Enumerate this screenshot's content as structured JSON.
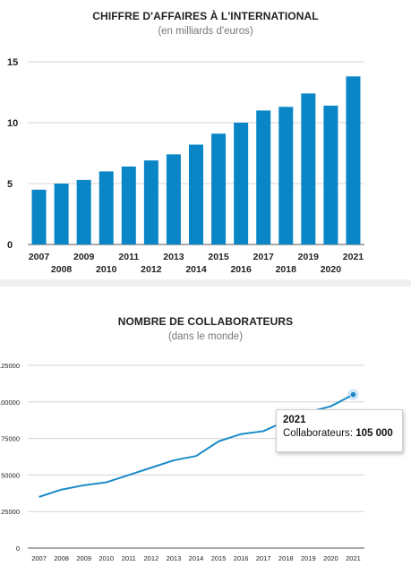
{
  "chart_data": [
    {
      "type": "bar",
      "title": "CHIFFRE D'AFFAIRES À L'INTERNATIONAL",
      "subtitle": "(en milliards d'euros)",
      "categories": [
        "2007",
        "2008",
        "2009",
        "2010",
        "2011",
        "2012",
        "2013",
        "2014",
        "2015",
        "2016",
        "2017",
        "2018",
        "2019",
        "2020",
        "2021"
      ],
      "values": [
        4.5,
        5.0,
        5.3,
        6.0,
        6.4,
        6.9,
        7.4,
        8.2,
        9.1,
        10.0,
        11.0,
        11.3,
        12.4,
        11.4,
        13.8
      ],
      "ylim": [
        0,
        15
      ],
      "yticks": [
        "0",
        "5",
        "10",
        "15"
      ],
      "color": "#0a86c6",
      "grid": true
    },
    {
      "type": "line",
      "title": "NOMBRE DE COLLABORATEURS",
      "subtitle": "(dans le monde)",
      "categories": [
        "2007",
        "2008",
        "2009",
        "2010",
        "2011",
        "2012",
        "2013",
        "2014",
        "2015",
        "2016",
        "2017",
        "2018",
        "2019",
        "2020",
        "2021"
      ],
      "values": [
        35000,
        40000,
        43000,
        45000,
        50000,
        55000,
        60000,
        63000,
        73000,
        78000,
        80000,
        87000,
        93000,
        97000,
        105000
      ],
      "ylim": [
        0,
        125000
      ],
      "yticks": [
        "0",
        "25000",
        "50000",
        "75000",
        "100000",
        "125000"
      ],
      "color": "#1a8ac8",
      "grid": true,
      "tooltip": {
        "year": "2021",
        "label": "Collaborateurs:",
        "value": "105 000"
      }
    }
  ]
}
